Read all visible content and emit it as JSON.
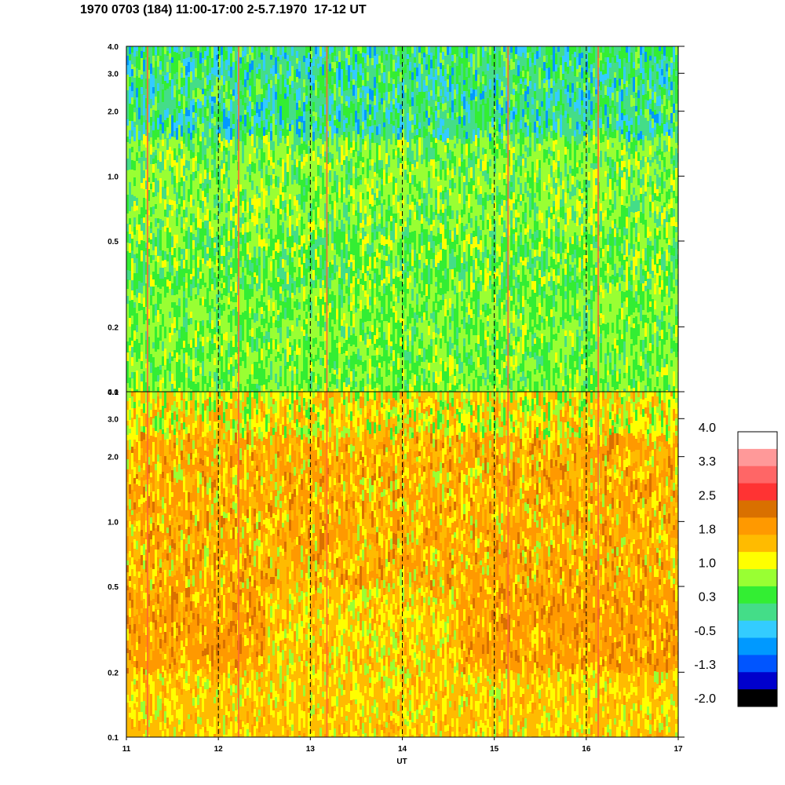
{
  "title": "1970 0703 (184) 11:00-17:00 2-5.7.1970  17-12 UT",
  "chart_data": [
    {
      "type": "heatmap",
      "panel": "upper",
      "xlabel": "UT",
      "x_range": [
        11,
        17
      ],
      "x_ticks": [
        "11",
        "12",
        "13",
        "14",
        "15",
        "16",
        "17"
      ],
      "y_scale": "log",
      "y_range": [
        0.1,
        4.0
      ],
      "y_ticks": [
        {
          "value": 0.1,
          "label": "0.1"
        },
        {
          "value": 0.2,
          "label": "0.2"
        },
        {
          "value": 0.5,
          "label": "0.5"
        },
        {
          "value": 1.0,
          "label": "1.0"
        },
        {
          "value": 2.0,
          "label": "2.0"
        },
        {
          "value": 3.0,
          "label": "3.0"
        },
        {
          "value": 4.0,
          "label": "4.0"
        }
      ],
      "dashed_hour_markers": [
        12,
        13,
        14,
        15,
        16
      ],
      "bursts_ut": [
        11.23,
        12.22,
        13.18,
        15.15,
        16.13
      ],
      "dominant_levels": "green/cyan above 0.5, yellow-green below 0.5"
    },
    {
      "type": "heatmap",
      "panel": "lower",
      "xlabel": "UT",
      "x_range": [
        11,
        17
      ],
      "x_ticks": [
        "11",
        "12",
        "13",
        "14",
        "15",
        "16",
        "17"
      ],
      "y_scale": "log",
      "y_range": [
        0.1,
        4.0
      ],
      "y_ticks": [
        {
          "value": 0.1,
          "label": "0.1"
        },
        {
          "value": 0.2,
          "label": "0.2"
        },
        {
          "value": 0.5,
          "label": "0.5"
        },
        {
          "value": 1.0,
          "label": "1.0"
        },
        {
          "value": 2.0,
          "label": "2.0"
        },
        {
          "value": 3.0,
          "label": "3.0"
        },
        {
          "value": 4.0,
          "label": "4.0"
        }
      ],
      "dashed_hour_markers": [
        12,
        13,
        14,
        15,
        16
      ],
      "bursts_ut": [
        11.23,
        12.22,
        13.18,
        15.15,
        16.13
      ],
      "dominant_levels": "orange/yellow, orange band 0.2-0.5"
    }
  ],
  "colorbar": {
    "labels": [
      "4.0",
      "3.3",
      "2.5",
      "1.8",
      "1.0",
      "0.3",
      "-0.5",
      "-1.3",
      "-2.0"
    ],
    "colors": [
      "#ffffff",
      "#ff9999",
      "#ff6666",
      "#ff3333",
      "#d97000",
      "#ff9900",
      "#ffbb00",
      "#ffff00",
      "#99ff33",
      "#33ee33",
      "#44dd88",
      "#33ccff",
      "#0099ff",
      "#0055ff",
      "#0000cc",
      "#000000"
    ]
  }
}
